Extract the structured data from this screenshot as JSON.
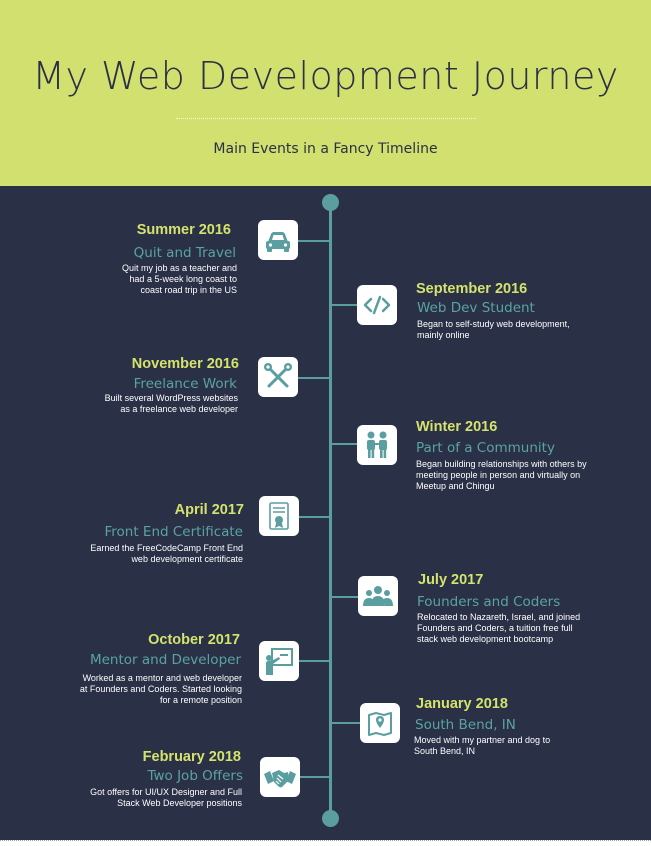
{
  "header": {
    "title": "My Web Development Journey",
    "subtitle": "Main Events in a Fancy Timeline"
  },
  "colors": {
    "header_bg": "#d1e06f",
    "body_bg": "#2a3046",
    "accent": "#5b9ea0",
    "date_text": "#d4e26e",
    "event_text": "#5aa3a4"
  },
  "events": [
    {
      "date": "Summer 2016",
      "title": "Quit and Travel",
      "icon": "car-icon",
      "desc": [
        "Quit my job as a teacher and",
        "had a 5-week long coast to",
        "coast road trip in the US"
      ]
    },
    {
      "date": "September 2016",
      "title": "Web Dev Student",
      "icon": "code-icon",
      "desc": [
        "Began to self-study web development,",
        "mainly online"
      ]
    },
    {
      "date": "November 2016",
      "title": "Freelance Work",
      "icon": "tools-icon",
      "desc": [
        "Built several WordPress websites",
        "as a freelance web developer"
      ]
    },
    {
      "date": "Winter 2016",
      "title": "Part of a Community",
      "icon": "people-icon",
      "desc": [
        "Began building relationships with others by",
        "meeting people in person and virtually on",
        "Meetup and Chingu"
      ]
    },
    {
      "date": "April 2017",
      "title": "Front End Certificate",
      "icon": "certificate-icon",
      "desc": [
        "Earned the FreeCodeCamp Front End",
        "web development certificate"
      ]
    },
    {
      "date": "July 2017",
      "title": "Founders and Coders",
      "icon": "group-icon",
      "desc": [
        "Relocated to Nazareth, Israel, and joined",
        "Founders and Coders, a tuition free full",
        "stack web development bootcamp"
      ]
    },
    {
      "date": "October 2017",
      "title": "Mentor and Developer",
      "icon": "teacher-icon",
      "desc": [
        "Worked as a mentor and web developer",
        "at Founders and Coders. Started looking",
        "for a remote position"
      ]
    },
    {
      "date": "January 2018",
      "title": "South Bend, IN",
      "icon": "map-icon",
      "desc": [
        "Moved with my partner and dog to",
        "South Bend, IN"
      ]
    },
    {
      "date": "February 2018",
      "title": "Two Job Offers",
      "icon": "handshake-icon",
      "desc": [
        "Got offers for UI/UX Designer and Full",
        "Stack Web Developer positions"
      ]
    }
  ]
}
